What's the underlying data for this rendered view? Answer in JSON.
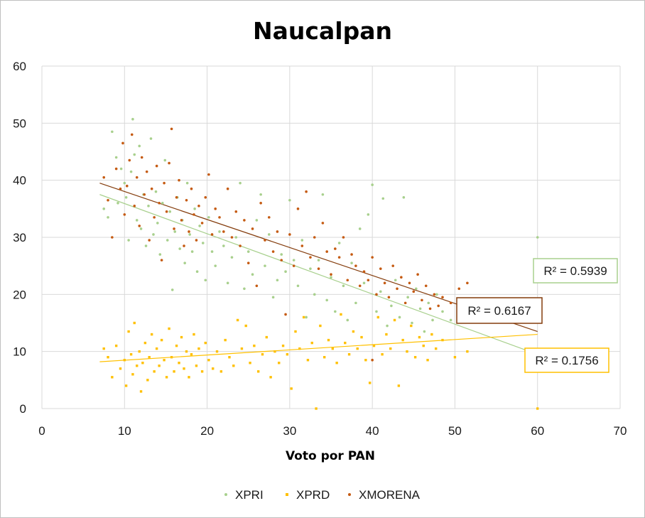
{
  "colors": {
    "XPRI": "#a8d08d",
    "XPRD": "#ffc000",
    "XMORENA": "#c55a11",
    "trend_XPRI": "#a8d08d",
    "trend_XPRD": "#ffc000",
    "trend_XMORENA": "#843c0c",
    "grid": "#d9d9d9"
  },
  "chart_data": {
    "type": "scatter",
    "title": "Naucalpan",
    "xlabel": "Voto por PAN",
    "ylabel": "",
    "xlim": [
      0,
      70
    ],
    "ylim": [
      0,
      60
    ],
    "x_ticks": [
      "0",
      "10",
      "20",
      "30",
      "40",
      "50",
      "60",
      "70"
    ],
    "y_ticks": [
      "0",
      "10",
      "20",
      "30",
      "40",
      "50",
      "60"
    ],
    "grid": true,
    "legend_position": "bottom",
    "series": [
      {
        "name": "XPRI",
        "marker": "circle",
        "points": [
          [
            7.5,
            35.0
          ],
          [
            8.0,
            33.5
          ],
          [
            8.5,
            48.5
          ],
          [
            9.0,
            44.0
          ],
          [
            9.2,
            36.0
          ],
          [
            9.6,
            42.0
          ],
          [
            10.0,
            39.5
          ],
          [
            10.2,
            37.0
          ],
          [
            10.5,
            29.5
          ],
          [
            10.8,
            41.5
          ],
          [
            11.0,
            50.7
          ],
          [
            11.2,
            44.5
          ],
          [
            11.5,
            33.0
          ],
          [
            11.8,
            46.0
          ],
          [
            12.0,
            31.5
          ],
          [
            12.3,
            37.5
          ],
          [
            12.6,
            28.5
          ],
          [
            12.9,
            35.5
          ],
          [
            13.2,
            47.3
          ],
          [
            13.5,
            30.5
          ],
          [
            13.8,
            38.0
          ],
          [
            14.0,
            32.5
          ],
          [
            14.3,
            27.0
          ],
          [
            14.6,
            36.0
          ],
          [
            14.9,
            43.5
          ],
          [
            15.2,
            29.5
          ],
          [
            15.5,
            34.5
          ],
          [
            15.8,
            20.8
          ],
          [
            16.1,
            31.0
          ],
          [
            16.4,
            37.0
          ],
          [
            16.7,
            28.0
          ],
          [
            17.0,
            33.0
          ],
          [
            17.3,
            25.5
          ],
          [
            17.6,
            39.5
          ],
          [
            17.9,
            30.5
          ],
          [
            18.2,
            27.5
          ],
          [
            18.5,
            35.0
          ],
          [
            18.8,
            24.0
          ],
          [
            19.1,
            32.0
          ],
          [
            19.5,
            29.0
          ],
          [
            19.8,
            22.5
          ],
          [
            20.2,
            33.5
          ],
          [
            20.6,
            27.5
          ],
          [
            21.0,
            25.0
          ],
          [
            21.5,
            31.0
          ],
          [
            22.0,
            28.5
          ],
          [
            22.5,
            22.0
          ],
          [
            23.0,
            26.5
          ],
          [
            23.5,
            30.0
          ],
          [
            24.0,
            39.5
          ],
          [
            24.5,
            21.0
          ],
          [
            25.0,
            27.5
          ],
          [
            25.5,
            23.5
          ],
          [
            26.0,
            33.0
          ],
          [
            26.5,
            37.5
          ],
          [
            27.0,
            25.0
          ],
          [
            27.5,
            30.5
          ],
          [
            28.0,
            19.5
          ],
          [
            28.5,
            22.5
          ],
          [
            29.0,
            27.0
          ],
          [
            29.5,
            24.0
          ],
          [
            30.0,
            36.5
          ],
          [
            30.5,
            26.0
          ],
          [
            31.0,
            21.5
          ],
          [
            31.5,
            29.5
          ],
          [
            32.0,
            16.0
          ],
          [
            32.5,
            24.5
          ],
          [
            33.0,
            20.0
          ],
          [
            33.5,
            26.0
          ],
          [
            34.0,
            37.5
          ],
          [
            34.5,
            19.0
          ],
          [
            35.0,
            23.0
          ],
          [
            35.5,
            17.0
          ],
          [
            36.0,
            29.0
          ],
          [
            36.5,
            21.5
          ],
          [
            37.0,
            15.5
          ],
          [
            37.5,
            25.5
          ],
          [
            38.0,
            18.5
          ],
          [
            38.5,
            31.5
          ],
          [
            39.0,
            22.0
          ],
          [
            39.5,
            34.0
          ],
          [
            40.0,
            39.2
          ],
          [
            40.5,
            17.0
          ],
          [
            41.0,
            20.5
          ],
          [
            41.3,
            36.8
          ],
          [
            41.8,
            14.5
          ],
          [
            42.3,
            18.0
          ],
          [
            42.8,
            22.5
          ],
          [
            43.3,
            16.0
          ],
          [
            43.8,
            37.0
          ],
          [
            44.3,
            19.5
          ],
          [
            44.8,
            15.0
          ],
          [
            45.3,
            21.0
          ],
          [
            45.8,
            17.5
          ],
          [
            46.3,
            13.5
          ],
          [
            46.8,
            18.5
          ],
          [
            47.3,
            15.5
          ],
          [
            47.8,
            20.0
          ],
          [
            48.5,
            17.0
          ],
          [
            49.5,
            15.5
          ],
          [
            60.0,
            30.0
          ]
        ]
      },
      {
        "name": "XPRD",
        "marker": "square",
        "points": [
          [
            7.5,
            10.5
          ],
          [
            8.0,
            9.0
          ],
          [
            8.5,
            5.5
          ],
          [
            9.0,
            11.0
          ],
          [
            9.5,
            7.0
          ],
          [
            10.0,
            8.5
          ],
          [
            10.2,
            4.0
          ],
          [
            10.5,
            13.5
          ],
          [
            10.8,
            9.5
          ],
          [
            11.0,
            6.0
          ],
          [
            11.2,
            15.0
          ],
          [
            11.5,
            7.5
          ],
          [
            11.8,
            10.0
          ],
          [
            12.0,
            3.0
          ],
          [
            12.2,
            8.0
          ],
          [
            12.5,
            11.5
          ],
          [
            12.8,
            5.0
          ],
          [
            13.0,
            9.0
          ],
          [
            13.3,
            13.0
          ],
          [
            13.6,
            6.5
          ],
          [
            13.9,
            10.5
          ],
          [
            14.2,
            7.5
          ],
          [
            14.5,
            12.0
          ],
          [
            14.8,
            8.5
          ],
          [
            15.1,
            5.5
          ],
          [
            15.4,
            14.0
          ],
          [
            15.7,
            9.0
          ],
          [
            16.0,
            6.5
          ],
          [
            16.3,
            11.0
          ],
          [
            16.6,
            8.0
          ],
          [
            16.9,
            12.5
          ],
          [
            17.2,
            7.0
          ],
          [
            17.5,
            10.0
          ],
          [
            17.8,
            5.5
          ],
          [
            18.1,
            9.5
          ],
          [
            18.4,
            13.0
          ],
          [
            18.7,
            7.5
          ],
          [
            19.0,
            10.5
          ],
          [
            19.4,
            6.5
          ],
          [
            19.8,
            11.5
          ],
          [
            20.2,
            8.5
          ],
          [
            20.7,
            7.0
          ],
          [
            21.2,
            10.0
          ],
          [
            21.7,
            6.5
          ],
          [
            22.2,
            12.0
          ],
          [
            22.7,
            9.0
          ],
          [
            23.2,
            7.5
          ],
          [
            23.7,
            15.5
          ],
          [
            24.2,
            10.5
          ],
          [
            24.7,
            14.5
          ],
          [
            25.2,
            8.0
          ],
          [
            25.7,
            11.0
          ],
          [
            26.2,
            6.5
          ],
          [
            26.7,
            9.5
          ],
          [
            27.2,
            12.5
          ],
          [
            27.7,
            5.5
          ],
          [
            28.2,
            10.0
          ],
          [
            28.7,
            8.0
          ],
          [
            29.2,
            11.0
          ],
          [
            29.7,
            9.5
          ],
          [
            30.2,
            3.5
          ],
          [
            30.7,
            13.5
          ],
          [
            31.2,
            10.5
          ],
          [
            31.7,
            16.0
          ],
          [
            32.2,
            8.5
          ],
          [
            32.7,
            11.5
          ],
          [
            33.2,
            0.0
          ],
          [
            33.7,
            14.5
          ],
          [
            34.2,
            9.0
          ],
          [
            34.7,
            12.0
          ],
          [
            35.2,
            10.5
          ],
          [
            35.7,
            8.0
          ],
          [
            36.2,
            16.5
          ],
          [
            36.7,
            11.5
          ],
          [
            37.2,
            9.5
          ],
          [
            37.7,
            13.5
          ],
          [
            38.2,
            10.5
          ],
          [
            38.7,
            12.5
          ],
          [
            39.2,
            8.5
          ],
          [
            39.7,
            4.5
          ],
          [
            40.2,
            11.0
          ],
          [
            40.7,
            16.0
          ],
          [
            41.2,
            9.5
          ],
          [
            41.7,
            13.0
          ],
          [
            42.2,
            10.5
          ],
          [
            42.7,
            15.5
          ],
          [
            43.2,
            4.0
          ],
          [
            43.7,
            12.0
          ],
          [
            44.2,
            10.0
          ],
          [
            44.7,
            14.5
          ],
          [
            45.2,
            9.0
          ],
          [
            45.7,
            12.5
          ],
          [
            46.2,
            11.0
          ],
          [
            46.7,
            8.5
          ],
          [
            47.2,
            13.0
          ],
          [
            47.7,
            10.5
          ],
          [
            48.5,
            12.0
          ],
          [
            50.0,
            9.0
          ],
          [
            51.5,
            10.0
          ],
          [
            60.0,
            0.0
          ]
        ]
      },
      {
        "name": "XMORENA",
        "marker": "circle",
        "points": [
          [
            7.5,
            40.5
          ],
          [
            8.0,
            36.5
          ],
          [
            8.5,
            30.0
          ],
          [
            9.0,
            42.0
          ],
          [
            9.5,
            38.5
          ],
          [
            9.8,
            46.5
          ],
          [
            10.0,
            34.0
          ],
          [
            10.3,
            39.0
          ],
          [
            10.6,
            43.5
          ],
          [
            10.9,
            48.0
          ],
          [
            11.2,
            35.5
          ],
          [
            11.5,
            40.5
          ],
          [
            11.8,
            32.0
          ],
          [
            12.1,
            44.0
          ],
          [
            12.4,
            37.5
          ],
          [
            12.7,
            41.5
          ],
          [
            13.0,
            29.5
          ],
          [
            13.3,
            38.5
          ],
          [
            13.6,
            33.5
          ],
          [
            13.9,
            42.5
          ],
          [
            14.2,
            36.0
          ],
          [
            14.5,
            26.0
          ],
          [
            14.8,
            39.5
          ],
          [
            15.1,
            34.5
          ],
          [
            15.4,
            43.0
          ],
          [
            15.7,
            49.0
          ],
          [
            16.0,
            31.5
          ],
          [
            16.3,
            37.0
          ],
          [
            16.6,
            40.0
          ],
          [
            16.9,
            33.0
          ],
          [
            17.2,
            28.5
          ],
          [
            17.5,
            36.5
          ],
          [
            17.8,
            31.0
          ],
          [
            18.1,
            38.5
          ],
          [
            18.4,
            34.0
          ],
          [
            18.7,
            29.5
          ],
          [
            19.0,
            35.5
          ],
          [
            19.4,
            32.5
          ],
          [
            19.8,
            37.0
          ],
          [
            20.2,
            41.0
          ],
          [
            20.6,
            30.5
          ],
          [
            21.0,
            35.0
          ],
          [
            21.5,
            33.5
          ],
          [
            22.0,
            31.0
          ],
          [
            22.5,
            38.5
          ],
          [
            23.0,
            30.0
          ],
          [
            23.5,
            34.5
          ],
          [
            24.0,
            28.5
          ],
          [
            24.5,
            33.0
          ],
          [
            25.0,
            25.5
          ],
          [
            25.5,
            31.5
          ],
          [
            26.0,
            21.5
          ],
          [
            26.5,
            36.0
          ],
          [
            27.0,
            29.5
          ],
          [
            27.5,
            33.5
          ],
          [
            28.0,
            27.5
          ],
          [
            28.5,
            31.0
          ],
          [
            29.0,
            26.0
          ],
          [
            29.5,
            16.5
          ],
          [
            30.0,
            30.5
          ],
          [
            30.5,
            25.0
          ],
          [
            31.0,
            35.0
          ],
          [
            31.5,
            28.5
          ],
          [
            32.0,
            38.0
          ],
          [
            32.5,
            26.5
          ],
          [
            33.0,
            30.0
          ],
          [
            33.5,
            24.5
          ],
          [
            34.0,
            32.5
          ],
          [
            34.5,
            27.5
          ],
          [
            35.0,
            23.5
          ],
          [
            35.5,
            28.0
          ],
          [
            36.0,
            26.5
          ],
          [
            36.5,
            30.0
          ],
          [
            37.0,
            22.5
          ],
          [
            37.5,
            27.0
          ],
          [
            38.0,
            25.0
          ],
          [
            38.5,
            21.5
          ],
          [
            39.0,
            24.0
          ],
          [
            39.5,
            22.5
          ],
          [
            40.0,
            26.5
          ],
          [
            40.5,
            20.0
          ],
          [
            41.0,
            24.5
          ],
          [
            41.5,
            22.0
          ],
          [
            42.0,
            19.5
          ],
          [
            42.5,
            25.0
          ],
          [
            43.0,
            21.0
          ],
          [
            43.5,
            23.0
          ],
          [
            44.0,
            18.5
          ],
          [
            44.5,
            22.0
          ],
          [
            45.0,
            20.5
          ],
          [
            45.5,
            23.5
          ],
          [
            46.0,
            19.0
          ],
          [
            46.5,
            21.5
          ],
          [
            47.0,
            17.5
          ],
          [
            47.5,
            20.0
          ],
          [
            48.0,
            18.0
          ],
          [
            48.5,
            19.5
          ],
          [
            49.5,
            18.5
          ],
          [
            50.5,
            21.0
          ],
          [
            51.5,
            22.0
          ],
          [
            40.0,
            8.5
          ]
        ]
      }
    ],
    "trendlines": [
      {
        "series": "XPRI",
        "x_range": [
          7,
          60
        ],
        "y_start": 37.5,
        "y_end": 9.5,
        "r2": "R² = 0.5939"
      },
      {
        "series": "XPRD",
        "x_range": [
          7,
          60
        ],
        "y_start": 8.2,
        "y_end": 13.0,
        "r2": "R² = 0.1756"
      },
      {
        "series": "XMORENA",
        "x_range": [
          7,
          60
        ],
        "y_start": 39.5,
        "y_end": 13.5,
        "r2": "R² = 0.6167"
      }
    ]
  }
}
